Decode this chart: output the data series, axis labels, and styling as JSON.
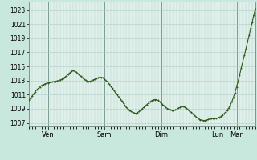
{
  "background_color": "#c8e8de",
  "plot_bg_color": "#dff0ea",
  "line_color": "#2d5a1b",
  "marker_color": "#2d5a1b",
  "grid_color_major": "#b0cdc8",
  "grid_color_minor": "#c8deda",
  "yticks": [
    1007,
    1009,
    1011,
    1013,
    1015,
    1017,
    1019,
    1021,
    1023
  ],
  "ylim": [
    1006.5,
    1024.2
  ],
  "xtick_labels": [
    "Ven",
    "Sam",
    "Dim",
    "Lun",
    "Mar"
  ],
  "vline_color": "#7a9a94",
  "y_data": [
    1010.2,
    1010.5,
    1010.8,
    1011.1,
    1011.4,
    1011.7,
    1011.9,
    1012.1,
    1012.3,
    1012.4,
    1012.5,
    1012.6,
    1012.65,
    1012.7,
    1012.75,
    1012.8,
    1012.85,
    1012.9,
    1012.95,
    1013.0,
    1013.1,
    1013.2,
    1013.35,
    1013.5,
    1013.7,
    1013.9,
    1014.1,
    1014.3,
    1014.4,
    1014.35,
    1014.2,
    1014.0,
    1013.8,
    1013.6,
    1013.4,
    1013.2,
    1013.05,
    1012.9,
    1012.85,
    1012.9,
    1013.0,
    1013.1,
    1013.2,
    1013.3,
    1013.4,
    1013.45,
    1013.45,
    1013.4,
    1013.2,
    1013.0,
    1012.8,
    1012.5,
    1012.2,
    1011.9,
    1011.6,
    1011.3,
    1011.0,
    1010.7,
    1010.4,
    1010.1,
    1009.8,
    1009.5,
    1009.2,
    1009.0,
    1008.8,
    1008.6,
    1008.5,
    1008.4,
    1008.35,
    1008.45,
    1008.6,
    1008.8,
    1009.0,
    1009.2,
    1009.4,
    1009.6,
    1009.8,
    1010.0,
    1010.15,
    1010.25,
    1010.3,
    1010.3,
    1010.2,
    1010.0,
    1009.8,
    1009.6,
    1009.4,
    1009.2,
    1009.05,
    1008.95,
    1008.85,
    1008.8,
    1008.8,
    1008.85,
    1008.9,
    1009.1,
    1009.2,
    1009.3,
    1009.35,
    1009.25,
    1009.1,
    1008.9,
    1008.7,
    1008.5,
    1008.3,
    1008.1,
    1007.9,
    1007.7,
    1007.55,
    1007.45,
    1007.4,
    1007.35,
    1007.35,
    1007.4,
    1007.5,
    1007.55,
    1007.6,
    1007.6,
    1007.6,
    1007.65,
    1007.7,
    1007.8,
    1007.9,
    1008.1,
    1008.3,
    1008.5,
    1008.8,
    1009.1,
    1009.5,
    1010.0,
    1010.6,
    1011.3,
    1012.1,
    1012.9,
    1013.8,
    1014.8,
    1015.7,
    1016.6,
    1017.5,
    1018.5,
    1019.4,
    1020.4,
    1021.3,
    1022.3,
    1023.2
  ],
  "n_points": 145,
  "days_x": [
    12,
    48,
    84,
    120,
    132
  ]
}
